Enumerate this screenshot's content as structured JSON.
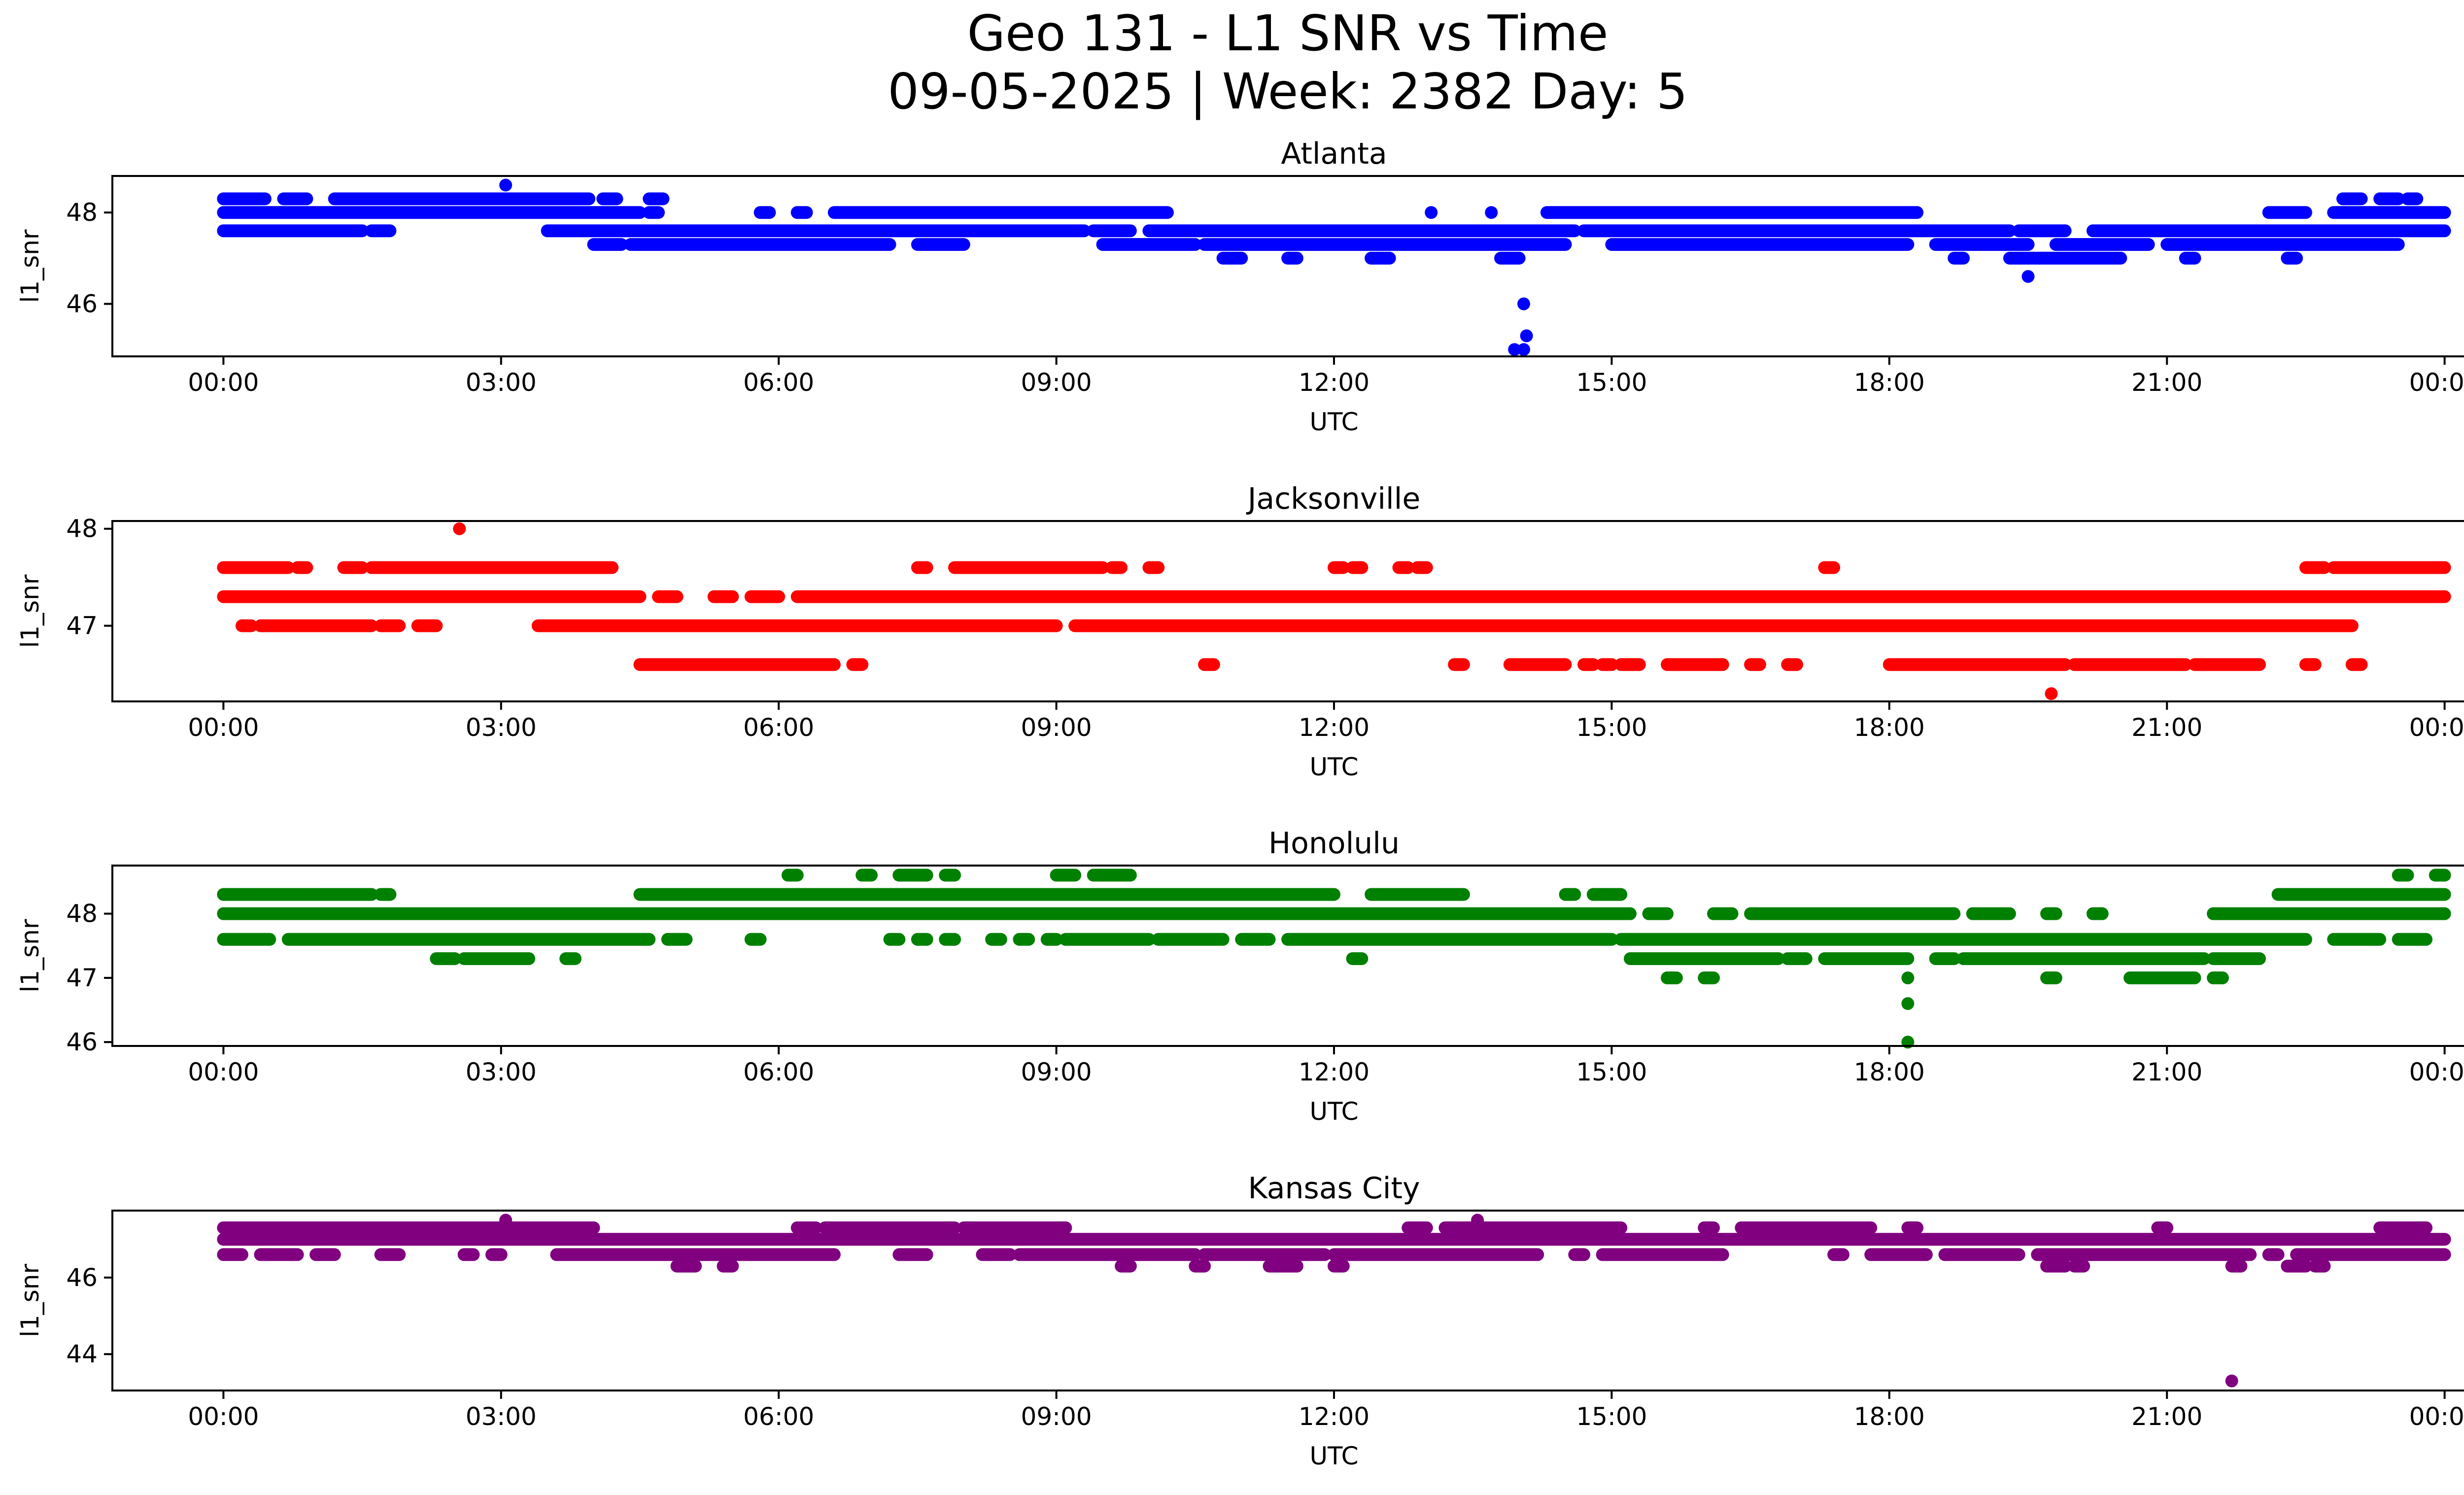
{
  "figure": {
    "title_line1": "Geo 131 - L1 SNR vs Time",
    "title_line2": "09-05-2025 | Week: 2382 Day: 5"
  },
  "chart_data": [
    {
      "type": "scatter",
      "title": "Atlanta",
      "color": "#0000ff",
      "xlabel": "UTC",
      "ylabel": "l1_snr",
      "xticks": [
        "00:00",
        "03:00",
        "06:00",
        "09:00",
        "12:00",
        "15:00",
        "18:00",
        "21:00",
        "00:00"
      ],
      "xlim": [
        -1.2,
        25.2
      ],
      "ylim": [
        44.85,
        48.8
      ],
      "yticks": [
        46,
        48
      ],
      "bands": [
        {
          "y": 48.3,
          "segments": [
            [
              0,
              0.45
            ],
            [
              0.65,
              0.9
            ],
            [
              1.2,
              3.95
            ],
            [
              4.1,
              4.25
            ],
            [
              4.6,
              4.75
            ],
            [
              22.9,
              23.1
            ],
            [
              23.3,
              23.5
            ],
            [
              23.6,
              23.7
            ]
          ]
        },
        {
          "y": 48.0,
          "segments": [
            [
              0,
              4.5
            ],
            [
              4.6,
              4.7
            ],
            [
              5.8,
              5.9
            ],
            [
              6.2,
              6.3
            ],
            [
              6.6,
              10.2
            ],
            [
              14.3,
              18.3
            ],
            [
              22.1,
              22.5
            ],
            [
              22.8,
              24
            ]
          ]
        },
        {
          "y": 47.6,
          "segments": [
            [
              0,
              1.5
            ],
            [
              1.6,
              1.8
            ],
            [
              3.5,
              9.3
            ],
            [
              9.4,
              9.8
            ],
            [
              10.0,
              14.6
            ],
            [
              14.7,
              19.3
            ],
            [
              19.4,
              19.9
            ],
            [
              20.2,
              24
            ]
          ]
        },
        {
          "y": 47.3,
          "segments": [
            [
              4.0,
              4.3
            ],
            [
              4.4,
              7.2
            ],
            [
              7.5,
              8.0
            ],
            [
              9.5,
              10.5
            ],
            [
              10.6,
              14.5
            ],
            [
              15.0,
              18.2
            ],
            [
              18.5,
              19.5
            ],
            [
              19.8,
              20.8
            ],
            [
              21.0,
              23.5
            ]
          ]
        },
        {
          "y": 47.0,
          "segments": [
            [
              10.8,
              11.0
            ],
            [
              11.5,
              11.6
            ],
            [
              12.4,
              12.6
            ],
            [
              13.8,
              14.0
            ],
            [
              18.7,
              18.8
            ],
            [
              19.3,
              20.5
            ],
            [
              21.2,
              21.3
            ],
            [
              22.3,
              22.4
            ]
          ]
        }
      ],
      "points": [
        [
          3.05,
          48.6
        ],
        [
          13.95,
          45.0
        ],
        [
          14.05,
          45.0
        ],
        [
          14.08,
          45.3
        ],
        [
          14.05,
          46.0
        ],
        [
          19.5,
          46.6
        ],
        [
          13.05,
          48.0
        ],
        [
          13.7,
          48.0
        ]
      ]
    },
    {
      "type": "scatter",
      "title": "Jacksonville",
      "color": "#ff0000",
      "xlabel": "UTC",
      "ylabel": "l1_snr",
      "xticks": [
        "00:00",
        "03:00",
        "06:00",
        "09:00",
        "12:00",
        "15:00",
        "18:00",
        "21:00",
        "00:00"
      ],
      "xlim": [
        -1.2,
        25.2
      ],
      "ylim": [
        46.22,
        48.08
      ],
      "yticks": [
        47,
        48
      ],
      "bands": [
        {
          "y": 47.6,
          "segments": [
            [
              0,
              0.7
            ],
            [
              0.8,
              0.9
            ],
            [
              1.3,
              1.5
            ],
            [
              1.6,
              4.2
            ],
            [
              7.5,
              7.6
            ],
            [
              7.9,
              9.5
            ],
            [
              9.6,
              9.7
            ],
            [
              10.0,
              10.1
            ],
            [
              12.0,
              12.1
            ],
            [
              12.2,
              12.3
            ],
            [
              12.7,
              12.8
            ],
            [
              12.9,
              13.0
            ],
            [
              17.3,
              17.4
            ],
            [
              22.5,
              22.7
            ],
            [
              22.8,
              24
            ]
          ]
        },
        {
          "y": 47.3,
          "segments": [
            [
              0,
              4.5
            ],
            [
              4.7,
              4.9
            ],
            [
              5.3,
              5.5
            ],
            [
              5.7,
              6.0
            ],
            [
              6.2,
              24
            ]
          ]
        },
        {
          "y": 47.0,
          "segments": [
            [
              0.2,
              0.3
            ],
            [
              0.4,
              1.6
            ],
            [
              1.7,
              1.9
            ],
            [
              2.1,
              2.3
            ],
            [
              3.4,
              9.0
            ],
            [
              9.2,
              23.0
            ]
          ]
        },
        {
          "y": 46.6,
          "segments": [
            [
              4.5,
              6.6
            ],
            [
              6.8,
              6.9
            ],
            [
              10.6,
              10.7
            ],
            [
              13.3,
              13.4
            ],
            [
              13.9,
              14.5
            ],
            [
              14.7,
              14.8
            ],
            [
              14.9,
              15.0
            ],
            [
              15.1,
              15.3
            ],
            [
              15.6,
              16.2
            ],
            [
              16.5,
              16.6
            ],
            [
              16.9,
              17.0
            ],
            [
              18.0,
              19.9
            ],
            [
              20.0,
              21.2
            ],
            [
              21.3,
              22.0
            ],
            [
              22.5,
              22.6
            ],
            [
              23.0,
              23.1
            ]
          ]
        }
      ],
      "points": [
        [
          2.55,
          48.0
        ],
        [
          19.75,
          46.3
        ]
      ]
    },
    {
      "type": "scatter",
      "title": "Honolulu",
      "color": "#008000",
      "xlabel": "UTC",
      "ylabel": "l1_snr",
      "xticks": [
        "00:00",
        "03:00",
        "06:00",
        "09:00",
        "12:00",
        "15:00",
        "18:00",
        "21:00",
        "00:00"
      ],
      "xlim": [
        -1.2,
        25.2
      ],
      "ylim": [
        45.94,
        48.75
      ],
      "yticks": [
        46,
        47,
        48
      ],
      "bands": [
        {
          "y": 48.6,
          "segments": [
            [
              6.1,
              6.2
            ],
            [
              6.9,
              7.0
            ],
            [
              7.3,
              7.6
            ],
            [
              7.8,
              7.9
            ],
            [
              9.0,
              9.2
            ],
            [
              9.4,
              9.8
            ],
            [
              23.5,
              23.6
            ],
            [
              23.9,
              24
            ]
          ]
        },
        {
          "y": 48.3,
          "segments": [
            [
              0,
              1.6
            ],
            [
              1.7,
              1.8
            ],
            [
              4.5,
              12.0
            ],
            [
              12.4,
              13.4
            ],
            [
              14.5,
              14.6
            ],
            [
              14.8,
              15.1
            ],
            [
              22.2,
              24
            ]
          ]
        },
        {
          "y": 48.0,
          "segments": [
            [
              0,
              15.2
            ],
            [
              15.4,
              15.6
            ],
            [
              16.1,
              16.3
            ],
            [
              16.5,
              18.7
            ],
            [
              18.9,
              19.3
            ],
            [
              19.7,
              19.8
            ],
            [
              20.2,
              20.3
            ],
            [
              21.5,
              24
            ]
          ]
        },
        {
          "y": 47.6,
          "segments": [
            [
              0,
              0.5
            ],
            [
              0.7,
              4.6
            ],
            [
              4.8,
              5.0
            ],
            [
              5.7,
              5.8
            ],
            [
              7.2,
              7.3
            ],
            [
              7.5,
              7.6
            ],
            [
              7.8,
              7.9
            ],
            [
              8.3,
              8.4
            ],
            [
              8.6,
              8.7
            ],
            [
              8.9,
              9.0
            ],
            [
              9.1,
              10.0
            ],
            [
              10.1,
              10.8
            ],
            [
              11.0,
              11.3
            ],
            [
              11.5,
              15.0
            ],
            [
              15.1,
              22.5
            ],
            [
              22.8,
              23.3
            ],
            [
              23.5,
              23.8
            ]
          ]
        },
        {
          "y": 47.3,
          "segments": [
            [
              2.3,
              2.5
            ],
            [
              2.6,
              3.3
            ],
            [
              3.7,
              3.8
            ],
            [
              12.2,
              12.3
            ],
            [
              15.2,
              16.8
            ],
            [
              16.9,
              17.1
            ],
            [
              17.3,
              18.2
            ],
            [
              18.5,
              18.7
            ],
            [
              18.8,
              21.4
            ],
            [
              21.5,
              22.0
            ]
          ]
        },
        {
          "y": 47.0,
          "segments": [
            [
              15.6,
              15.7
            ],
            [
              16.0,
              16.1
            ],
            [
              19.7,
              19.8
            ],
            [
              20.6,
              21.3
            ],
            [
              21.5,
              21.6
            ]
          ]
        }
      ],
      "points": [
        [
          18.2,
          47.0
        ],
        [
          18.2,
          46.6
        ],
        [
          18.2,
          46.0
        ]
      ]
    },
    {
      "type": "scatter",
      "title": "Kansas City",
      "color": "#800080",
      "xlabel": "UTC",
      "ylabel": "l1_snr",
      "xticks": [
        "00:00",
        "03:00",
        "06:00",
        "09:00",
        "12:00",
        "15:00",
        "18:00",
        "21:00",
        "00:00"
      ],
      "xlim": [
        -1.2,
        25.2
      ],
      "ylim": [
        43.05,
        47.75
      ],
      "yticks": [
        44,
        46
      ],
      "bands": [
        {
          "y": 47.3,
          "segments": [
            [
              0,
              4.0
            ],
            [
              6.2,
              6.4
            ],
            [
              6.5,
              7.9
            ],
            [
              8.0,
              9.1
            ],
            [
              12.8,
              13.0
            ],
            [
              13.2,
              15.1
            ],
            [
              16.0,
              16.1
            ],
            [
              16.4,
              17.8
            ],
            [
              18.2,
              18.3
            ],
            [
              20.9,
              21.0
            ],
            [
              23.3,
              23.8
            ]
          ]
        },
        {
          "y": 47.0,
          "segments": [
            [
              0,
              24
            ]
          ]
        },
        {
          "y": 46.6,
          "segments": [
            [
              0,
              0.2
            ],
            [
              0.4,
              0.8
            ],
            [
              1.0,
              1.2
            ],
            [
              1.7,
              1.9
            ],
            [
              2.6,
              2.7
            ],
            [
              2.9,
              3.0
            ],
            [
              3.6,
              6.6
            ],
            [
              7.3,
              7.6
            ],
            [
              8.2,
              8.5
            ],
            [
              8.6,
              10.5
            ],
            [
              10.6,
              11.9
            ],
            [
              12.0,
              14.2
            ],
            [
              14.6,
              14.7
            ],
            [
              14.9,
              16.2
            ],
            [
              17.4,
              17.5
            ],
            [
              17.8,
              18.4
            ],
            [
              18.6,
              19.4
            ],
            [
              19.6,
              21.9
            ],
            [
              22.1,
              22.2
            ],
            [
              22.4,
              24
            ]
          ]
        },
        {
          "y": 46.3,
          "segments": [
            [
              4.9,
              5.1
            ],
            [
              5.4,
              5.5
            ],
            [
              9.7,
              9.8
            ],
            [
              10.5,
              10.6
            ],
            [
              11.3,
              11.6
            ],
            [
              12.0,
              12.1
            ],
            [
              19.7,
              19.9
            ],
            [
              20.0,
              20.1
            ],
            [
              21.7,
              21.8
            ],
            [
              22.3,
              22.5
            ],
            [
              22.6,
              22.7
            ]
          ]
        }
      ],
      "points": [
        [
          3.05,
          47.5
        ],
        [
          13.55,
          47.5
        ],
        [
          21.7,
          43.3
        ],
        [
          23.6,
          47.3
        ]
      ]
    }
  ]
}
